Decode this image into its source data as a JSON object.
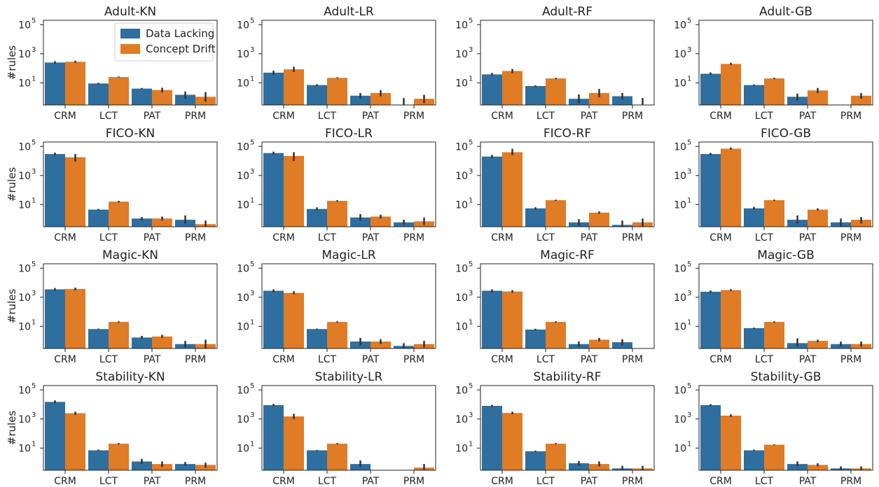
{
  "chart_data": {
    "type": "bar",
    "layout": "grid-4x4",
    "y_scale": "log",
    "ylim": [
      0.3,
      200000
    ],
    "yticks": [
      {
        "base": "10",
        "exp": "1"
      },
      {
        "base": "10",
        "exp": "3"
      },
      {
        "base": "10",
        "exp": "5"
      }
    ],
    "ylabel": "#rules",
    "categories": [
      "CRM",
      "LCT",
      "PAT",
      "PRM"
    ],
    "series_names": [
      "Data Lacking",
      "Concept Drift"
    ],
    "colors": {
      "Data Lacking": "#2f6f9f",
      "Concept Drift": "#e07b26",
      "error_bar": "#333333"
    },
    "legend": {
      "placement": "top-right",
      "panel": 0,
      "entries": [
        "Data Lacking",
        "Concept Drift"
      ]
    },
    "grid": false,
    "panels": [
      {
        "title": "Adult-KN",
        "series": [
          {
            "name": "Data Lacking",
            "values": [
              250,
              9,
              4,
              1.5
            ],
            "err": [
              [
                200,
                310
              ],
              [
                8,
                10
              ],
              [
                3.6,
                4.4
              ],
              [
                0.8,
                2.5
              ]
            ]
          },
          {
            "name": "Concept Drift",
            "values": [
              280,
              25,
              3.2,
              1.1
            ],
            "err": [
              [
                240,
                330
              ],
              [
                23,
                27
              ],
              [
                2.2,
                4.6
              ],
              [
                0.5,
                2.3
              ]
            ]
          }
        ]
      },
      {
        "title": "Adult-LR",
        "series": [
          {
            "name": "Data Lacking",
            "values": [
              50,
              7,
              1.3,
              null
            ],
            "err": [
              [
                35,
                70
              ],
              [
                6,
                8
              ],
              [
                0.8,
                2
              ],
              [
                null,
                0.9
              ]
            ]
          },
          {
            "name": "Concept Drift",
            "values": [
              85,
              22,
              2,
              0.8
            ],
            "err": [
              [
                55,
                130
              ],
              [
                20,
                24
              ],
              [
                1.2,
                3.2
              ],
              [
                0.4,
                1.5
              ]
            ]
          }
        ]
      },
      {
        "title": "Adult-RF",
        "series": [
          {
            "name": "Data Lacking",
            "values": [
              38,
              6,
              0.8,
              1.2
            ],
            "err": [
              [
                30,
                48
              ],
              [
                5.3,
                6.7
              ],
              [
                0.4,
                1.6
              ],
              [
                0.7,
                2
              ]
            ]
          },
          {
            "name": "Concept Drift",
            "values": [
              65,
              20,
              2,
              null
            ],
            "err": [
              [
                45,
                90
              ],
              [
                18,
                22
              ],
              [
                1,
                3.8
              ],
              [
                null,
                0.9
              ]
            ]
          }
        ]
      },
      {
        "title": "Adult-GB",
        "series": [
          {
            "name": "Data Lacking",
            "values": [
              42,
              7,
              1.1,
              null
            ],
            "err": [
              [
                35,
                52
              ],
              [
                6.2,
                7.8
              ],
              [
                0.6,
                1.8
              ],
              null
            ]
          },
          {
            "name": "Concept Drift",
            "values": [
              200,
              20,
              3,
              1.3
            ],
            "err": [
              [
                170,
                240
              ],
              [
                18,
                22
              ],
              [
                2,
                4.5
              ],
              [
                0.8,
                2
              ]
            ]
          }
        ]
      },
      {
        "title": "FICO-KN",
        "series": [
          {
            "name": "Data Lacking",
            "values": [
              30000,
              4.5,
              1.1,
              0.9
            ],
            "err": [
              [
                24000,
                37000
              ],
              [
                4,
                5
              ],
              [
                0.8,
                1.4
              ],
              [
                0.5,
                1.8
              ]
            ]
          },
          {
            "name": "Concept Drift",
            "values": [
              18000,
              16,
              1.1,
              0.45
            ],
            "err": [
              [
                9000,
                30000
              ],
              [
                14,
                18
              ],
              [
                0.8,
                1.5
              ],
              [
                0.3,
                0.8
              ]
            ]
          }
        ]
      },
      {
        "title": "FICO-LR",
        "series": [
          {
            "name": "Data Lacking",
            "values": [
              35000,
              5,
              1.3,
              0.6
            ],
            "err": [
              [
                28000,
                44000
              ],
              [
                4,
                6.5
              ],
              [
                0.8,
                2.2
              ],
              [
                0.4,
                0.9
              ]
            ]
          },
          {
            "name": "Concept Drift",
            "values": [
              22000,
              18,
              1.5,
              0.7
            ],
            "err": [
              [
                10000,
                40000
              ],
              [
                16,
                20
              ],
              [
                1.1,
                2
              ],
              [
                0.4,
                1.3
              ]
            ]
          }
        ]
      },
      {
        "title": "FICO-RF",
        "series": [
          {
            "name": "Data Lacking",
            "values": [
              20000,
              5.5,
              0.6,
              0.4
            ],
            "err": [
              [
                16000,
                26000
              ],
              [
                4.5,
                6.5
              ],
              [
                0.35,
                1
              ],
              [
                0.25,
                0.8
              ]
            ]
          },
          {
            "name": "Concept Drift",
            "values": [
              40000,
              20,
              2.8,
              0.6
            ],
            "err": [
              [
                25000,
                70000
              ],
              [
                18,
                22
              ],
              [
                2.3,
                3.4
              ],
              [
                0.3,
                1.1
              ]
            ]
          }
        ]
      },
      {
        "title": "FICO-GB",
        "series": [
          {
            "name": "Data Lacking",
            "values": [
              30000,
              5.5,
              0.9,
              0.6
            ],
            "err": [
              [
                25000,
                36000
              ],
              [
                4.5,
                7
              ],
              [
                0.5,
                1.8
              ],
              [
                0.3,
                1.1
              ]
            ]
          },
          {
            "name": "Concept Drift",
            "values": [
              70000,
              20,
              4.5,
              0.9
            ],
            "err": [
              [
                60000,
                85000
              ],
              [
                18,
                22
              ],
              [
                3.8,
                5.5
              ],
              [
                0.5,
                1.4
              ]
            ]
          }
        ]
      },
      {
        "title": "Magic-KN",
        "series": [
          {
            "name": "Data Lacking",
            "values": [
              3500,
              6.5,
              1.7,
              0.6
            ],
            "err": [
              [
                2900,
                4300
              ],
              [
                6,
                7
              ],
              [
                1.3,
                2.2
              ],
              [
                0.35,
                1
              ]
            ]
          },
          {
            "name": "Concept Drift",
            "values": [
              3700,
              20,
              2,
              0.6
            ],
            "err": [
              [
                3000,
                4600
              ],
              [
                18,
                22
              ],
              [
                1.6,
                2.6
              ],
              [
                0.3,
                1.2
              ]
            ]
          }
        ]
      },
      {
        "title": "Magic-LR",
        "series": [
          {
            "name": "Data Lacking",
            "values": [
              2800,
              6.5,
              0.9,
              0.45
            ],
            "err": [
              [
                2200,
                3500
              ],
              [
                6,
                7
              ],
              [
                0.5,
                1.6
              ],
              [
                0.3,
                0.7
              ]
            ]
          },
          {
            "name": "Concept Drift",
            "values": [
              2000,
              20,
              0.9,
              0.6
            ],
            "err": [
              [
                1600,
                2600
              ],
              [
                18,
                22
              ],
              [
                0.6,
                1.3
              ],
              [
                0.35,
                1
              ]
            ]
          }
        ]
      },
      {
        "title": "Magic-RF",
        "series": [
          {
            "name": "Data Lacking",
            "values": [
              2800,
              6,
              0.6,
              0.8
            ],
            "err": [
              [
                2200,
                3500
              ],
              [
                5.2,
                6.8
              ],
              [
                0.4,
                0.9
              ],
              [
                0.5,
                1.3
              ]
            ]
          },
          {
            "name": "Concept Drift",
            "values": [
              2500,
              20,
              1.2,
              null
            ],
            "err": [
              [
                2000,
                3100
              ],
              [
                18,
                22
              ],
              [
                0.95,
                1.6
              ],
              null
            ]
          }
        ]
      },
      {
        "title": "Magic-GB",
        "series": [
          {
            "name": "Data Lacking",
            "values": [
              2400,
              7.5,
              0.7,
              0.6
            ],
            "err": [
              [
                2000,
                2900
              ],
              [
                6.8,
                8.2
              ],
              [
                0.4,
                1.5
              ],
              [
                0.4,
                0.9
              ]
            ]
          },
          {
            "name": "Concept Drift",
            "values": [
              3100,
              20,
              1,
              0.6
            ],
            "err": [
              [
                2700,
                3600
              ],
              [
                18,
                22
              ],
              [
                0.8,
                1.2
              ],
              [
                0.4,
                0.9
              ]
            ]
          }
        ]
      },
      {
        "title": "Stability-KN",
        "series": [
          {
            "name": "Data Lacking",
            "values": [
              15000,
              7,
              1.2,
              0.8
            ],
            "err": [
              [
                12000,
                19000
              ],
              [
                6.3,
                7.8
              ],
              [
                0.8,
                1.8
              ],
              [
                0.6,
                1.1
              ]
            ]
          },
          {
            "name": "Concept Drift",
            "values": [
              2500,
              20,
              0.8,
              0.7
            ],
            "err": [
              [
                1900,
                3200
              ],
              [
                18,
                22
              ],
              [
                0.5,
                1.2
              ],
              [
                0.45,
                1
              ]
            ]
          }
        ]
      },
      {
        "title": "Stability-LR",
        "series": [
          {
            "name": "Data Lacking",
            "values": [
              9000,
              7,
              0.8,
              null
            ],
            "err": [
              [
                7500,
                11000
              ],
              [
                6.5,
                7.5
              ],
              [
                0.5,
                1.4
              ],
              null
            ]
          },
          {
            "name": "Concept Drift",
            "values": [
              1500,
              20,
              null,
              0.45
            ],
            "err": [
              [
                1000,
                2300
              ],
              [
                18,
                22
              ],
              null,
              [
                0.3,
                0.8
              ]
            ]
          }
        ]
      },
      {
        "title": "Stability-RF",
        "series": [
          {
            "name": "Data Lacking",
            "values": [
              8000,
              6,
              0.9,
              0.4
            ],
            "err": [
              [
                6800,
                9500
              ],
              [
                5.4,
                6.6
              ],
              [
                0.6,
                1.3
              ],
              [
                0.3,
                0.6
              ]
            ]
          },
          {
            "name": "Concept Drift",
            "values": [
              2600,
              20,
              0.8,
              0.4
            ],
            "err": [
              [
                2100,
                3200
              ],
              [
                18,
                22
              ],
              [
                0.55,
                1.2
              ],
              [
                0.3,
                0.6
              ]
            ]
          }
        ]
      },
      {
        "title": "Stability-GB",
        "series": [
          {
            "name": "Data Lacking",
            "values": [
              9000,
              7,
              0.8,
              0.4
            ],
            "err": [
              [
                7600,
                10500
              ],
              [
                6.3,
                7.8
              ],
              [
                0.55,
                1.2
              ],
              [
                0.3,
                0.55
              ]
            ]
          },
          {
            "name": "Concept Drift",
            "values": [
              1700,
              17,
              0.7,
              0.4
            ],
            "err": [
              [
                1400,
                2100
              ],
              [
                16,
                18
              ],
              [
                0.55,
                0.9
              ],
              [
                0.3,
                0.55
              ]
            ]
          }
        ]
      }
    ]
  }
}
